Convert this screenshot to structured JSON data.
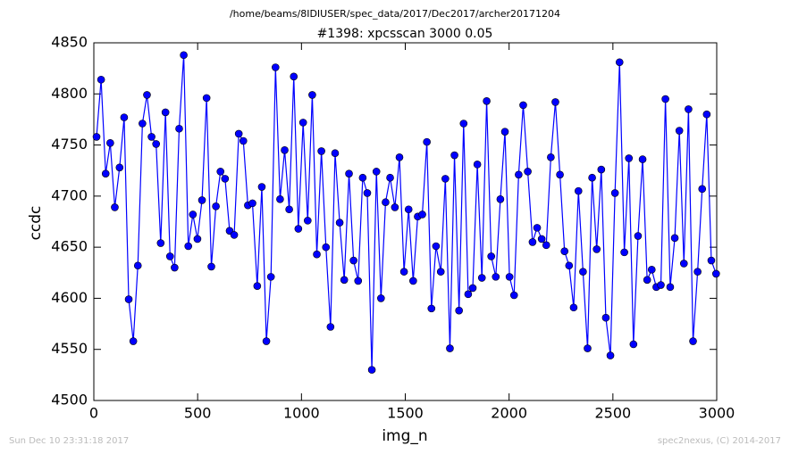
{
  "chart_data": {
    "type": "line",
    "suptitle": "/home/beams/8IDIUSER/spec_data/2017/Dec2017/archer20171204",
    "title": "#1398: xpcsscan 3000 0.05",
    "x_label": "img_n",
    "y_label": "ccdc",
    "footer_left": "Sun Dec 10 23:31:18 2017",
    "footer_right": "spec2nexus, (C) 2014-2017",
    "xlim": [
      0,
      3000
    ],
    "ylim": [
      4500,
      4850
    ],
    "xticks": [
      0,
      500,
      1000,
      1500,
      2000,
      2500,
      3000
    ],
    "yticks": [
      4500,
      4550,
      4600,
      4650,
      4700,
      4750,
      4800,
      4850
    ],
    "series": [
      {
        "name": "ccdc",
        "color": "#0000ff",
        "x": [
          13,
          35,
          57,
          79,
          101,
          124,
          146,
          168,
          190,
          212,
          234,
          256,
          278,
          300,
          322,
          345,
          367,
          389,
          411,
          433,
          455,
          477,
          499,
          521,
          543,
          566,
          588,
          610,
          632,
          654,
          676,
          698,
          720,
          742,
          764,
          787,
          809,
          831,
          853,
          875,
          897,
          919,
          941,
          963,
          985,
          1008,
          1030,
          1052,
          1074,
          1096,
          1118,
          1140,
          1162,
          1184,
          1206,
          1229,
          1251,
          1273,
          1295,
          1317,
          1339,
          1361,
          1383,
          1405,
          1427,
          1450,
          1472,
          1494,
          1516,
          1538,
          1560,
          1582,
          1604,
          1626,
          1648,
          1671,
          1693,
          1715,
          1737,
          1759,
          1781,
          1803,
          1825,
          1847,
          1869,
          1892,
          1914,
          1936,
          1958,
          1980,
          2002,
          2024,
          2046,
          2068,
          2090,
          2113,
          2135,
          2157,
          2179,
          2201,
          2223,
          2245,
          2267,
          2289,
          2311,
          2334,
          2356,
          2378,
          2400,
          2422,
          2444,
          2466,
          2488,
          2510,
          2532,
          2555,
          2577,
          2599,
          2621,
          2643,
          2665,
          2687,
          2709,
          2731,
          2753,
          2776,
          2798,
          2820,
          2842,
          2864,
          2886,
          2908,
          2930,
          2952,
          2974,
          2997
        ],
        "values": [
          4758,
          4814,
          4722,
          4752,
          4689,
          4728,
          4777,
          4599,
          4558,
          4632,
          4771,
          4799,
          4758,
          4751,
          4654,
          4782,
          4641,
          4630,
          4766,
          4838,
          4651,
          4682,
          4658,
          4696,
          4796,
          4631,
          4690,
          4724,
          4717,
          4666,
          4662,
          4761,
          4754,
          4691,
          4693,
          4612,
          4709,
          4558,
          4621,
          4826,
          4697,
          4745,
          4687,
          4817,
          4668,
          4772,
          4676,
          4799,
          4643,
          4744,
          4650,
          4572,
          4742,
          4674,
          4618,
          4722,
          4637,
          4617,
          4718,
          4703,
          4530,
          4724,
          4600,
          4694,
          4718,
          4689,
          4738,
          4626,
          4687,
          4617,
          4680,
          4682,
          4753,
          4590,
          4651,
          4626,
          4717,
          4551,
          4740,
          4588,
          4771,
          4604,
          4610,
          4731,
          4620,
          4793,
          4641,
          4621,
          4697,
          4763,
          4621,
          4603,
          4721,
          4789,
          4724,
          4655,
          4669,
          4658,
          4652,
          4738,
          4792,
          4721,
          4646,
          4632,
          4591,
          4705,
          4626,
          4551,
          4718,
          4648,
          4726,
          4581,
          4544,
          4703,
          4831,
          4645,
          4737,
          4555,
          4661,
          4736,
          4618,
          4628,
          4611,
          4613,
          4795,
          4611,
          4659,
          4764,
          4634,
          4785,
          4558,
          4626,
          4707,
          4780,
          4637,
          4624
        ]
      }
    ]
  }
}
